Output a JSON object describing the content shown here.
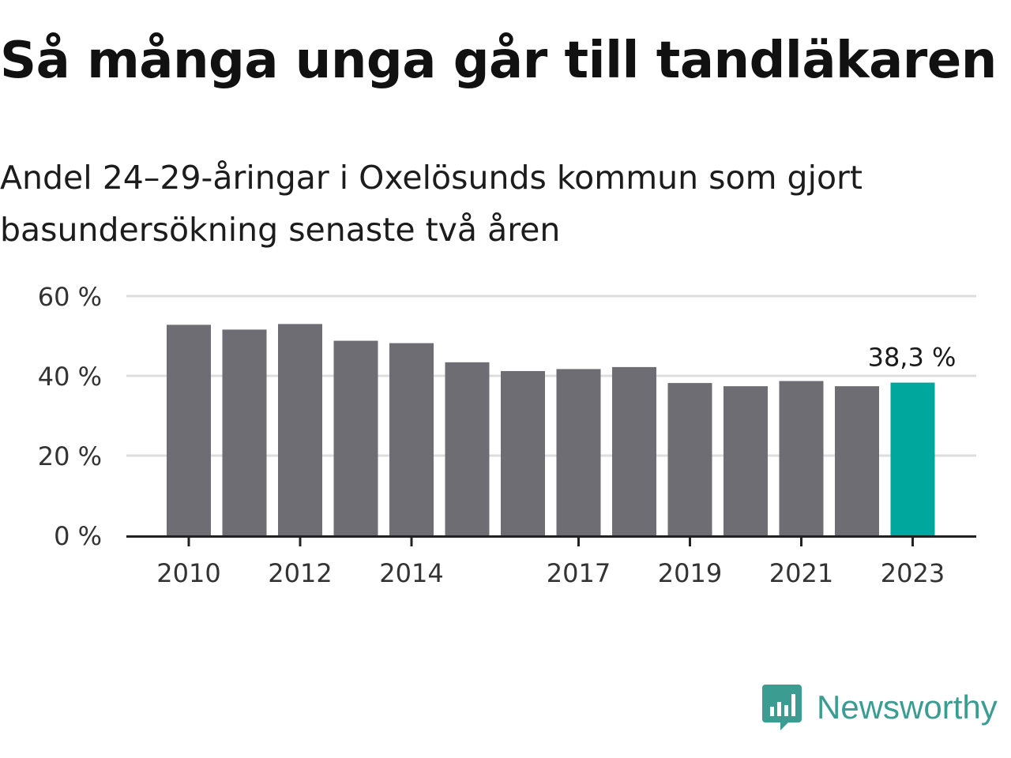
{
  "title": "Så många unga går till tandläkaren",
  "subtitle": "Andel 24–29-åringar i Oxelösunds kommun som gjort basundersökning senaste två åren",
  "brand": {
    "name": "Newsworthy",
    "icon": "newsworthy-logo-icon",
    "color": "#3b9c92"
  },
  "chart_data": {
    "type": "bar",
    "categories": [
      "2010",
      "2011",
      "2012",
      "2013",
      "2014",
      "2015",
      "2016",
      "2017",
      "2018",
      "2019",
      "2020",
      "2021",
      "2022",
      "2023"
    ],
    "values": [
      52.8,
      51.6,
      53.0,
      48.8,
      48.2,
      43.4,
      41.2,
      41.7,
      42.2,
      38.2,
      37.4,
      38.7,
      37.4,
      38.3
    ],
    "x_tick_labels": [
      "2010",
      "2012",
      "2014",
      "2017",
      "2019",
      "2021",
      "2023"
    ],
    "y_ticks": [
      0,
      20,
      40,
      60
    ],
    "y_tick_labels": [
      "0 %",
      "20 %",
      "40 %",
      "60 %"
    ],
    "ylim": [
      0,
      60
    ],
    "grid": true,
    "highlight_index": 13,
    "highlight_label": "38,3 %",
    "colors": {
      "bar": "#6e6d73",
      "highlight": "#00a79d",
      "grid": "#dddddd",
      "axis": "#222222",
      "text": "#333333"
    }
  }
}
